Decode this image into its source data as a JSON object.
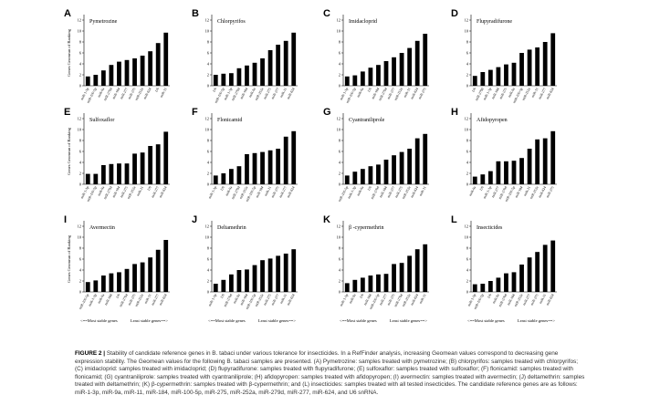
{
  "figure_label": "FIGURE 2 |",
  "caption": "Stability of candidate reference genes in B. tabaci under various tolerance for insecticides. In a RefFinder analysis, increasing Geomean values correspond to decreasing gene expression stability. The Geomean values for the following B. tabaci samples are presented. (A) Pymetrozine: samples treated with pymetrozine; (B) chlorpyrifos: samples treated with chlorpyrifos; (C) imidacloprid: samples treated with imidacloprid; (D) flupyradifurone: samples treated with flupyradifurone; (E) sulfoxaflor: samples treated with sulfoxaflor; (F) flonicamid: samples treated with flonicamid; (G) cyantraniliprole: samples treated with cyantraniliprole; (H) afidopyropen: samples treated with afidopyropen; (I) avermectin: samples treated with avermectin; (J) deltamethrin: samples treated with deltamethrin; (K) β-cypermethrin: samples treated with β-cypermethrin; and (L) insecticides: samples treated with all tested insecticides. The candidate reference genes are as follows: miR-1-3p, miR-9a, miR-11, miR-184, miR-100-5p, miR-275, miR-252a, miR-279d, miR-277, miR-624, and U6 snRNA.",
  "ylabel": "Genes Geomean of Ranking",
  "xlabel_left": "<==Most stable genes",
  "xlabel_right": "Least stable genes==>",
  "chart_data": [
    {
      "type": "bar",
      "panel": "A",
      "title": "Pymetrozine",
      "ylim": [
        0,
        12
      ],
      "yticks": [
        0,
        2,
        4,
        6,
        8,
        10,
        12
      ],
      "categories": [
        "miR-1-3p",
        "miR-100-5p",
        "miR-9a",
        "miR-279d",
        "miR-184",
        "miR-277",
        "miR-275",
        "miR-252a",
        "miR-624",
        "U6",
        "miR-11"
      ],
      "values": [
        1.7,
        2.0,
        2.8,
        3.8,
        4.4,
        4.7,
        5.0,
        5.5,
        6.3,
        7.8,
        9.7
      ]
    },
    {
      "type": "bar",
      "panel": "B",
      "title": "Chlorpyrifos",
      "ylim": [
        0,
        12
      ],
      "yticks": [
        0,
        2,
        4,
        6,
        8,
        10,
        12
      ],
      "categories": [
        "U6",
        "miR-100-5p",
        "miR-1-3p",
        "miR-279d",
        "miR-184",
        "miR-9a",
        "miR-252a",
        "miR-275",
        "miR-277",
        "miR-11",
        "miR-624"
      ],
      "values": [
        2.0,
        2.2,
        2.3,
        3.2,
        3.7,
        4.2,
        5.0,
        6.5,
        7.5,
        8.2,
        9.7
      ]
    },
    {
      "type": "bar",
      "panel": "C",
      "title": "Imidacloprid",
      "ylim": [
        0,
        12
      ],
      "yticks": [
        0,
        2,
        4,
        6,
        8,
        10,
        12
      ],
      "categories": [
        "miR-1-3p",
        "miR-100-5p",
        "miR-9a",
        "U6",
        "miR-184",
        "miR-279d",
        "miR-277",
        "miR-252a",
        "miR-11",
        "miR-624",
        "miR-275"
      ],
      "values": [
        1.7,
        1.9,
        2.6,
        3.3,
        3.8,
        4.5,
        5.2,
        6.0,
        6.9,
        8.2,
        9.5
      ]
    },
    {
      "type": "bar",
      "panel": "D",
      "title": "Flupyradifurone",
      "ylim": [
        0,
        12
      ],
      "yticks": [
        0,
        2,
        4,
        6,
        8,
        10,
        12
      ],
      "categories": [
        "U6",
        "miR-279d",
        "miR-1-3p",
        "miR-184",
        "miR-275",
        "miR-9a",
        "miR-100-5p",
        "miR-252a",
        "miR-11",
        "miR-277",
        "miR-624"
      ],
      "values": [
        1.8,
        2.5,
        2.9,
        3.4,
        3.9,
        4.2,
        6.0,
        6.6,
        7.0,
        8.0,
        9.6
      ]
    },
    {
      "type": "bar",
      "panel": "E",
      "title": "Sulfoxaflor",
      "ylim": [
        0,
        12
      ],
      "yticks": [
        0,
        2,
        4,
        6,
        8,
        10,
        12
      ],
      "categories": [
        "miR-1-3p",
        "miR-100-5p",
        "miR-9a",
        "miR-279d",
        "miR-184",
        "miR-275",
        "miR-252a",
        "miR-11",
        "U6",
        "miR-277",
        "miR-624"
      ],
      "values": [
        1.9,
        1.9,
        3.5,
        3.7,
        3.8,
        3.8,
        5.6,
        5.8,
        7.0,
        7.3,
        9.6
      ]
    },
    {
      "type": "bar",
      "panel": "F",
      "title": "Flonicamid",
      "ylim": [
        0,
        12
      ],
      "yticks": [
        0,
        2,
        4,
        6,
        8,
        10,
        12
      ],
      "categories": [
        "miR-1-3p",
        "U6",
        "miR-9a",
        "miR-279d",
        "miR-252a",
        "miR-100-5p",
        "miR-184",
        "miR-11",
        "miR-275",
        "miR-277",
        "miR-624"
      ],
      "values": [
        1.6,
        2.0,
        2.8,
        3.3,
        5.5,
        5.7,
        5.9,
        6.2,
        6.5,
        8.7,
        9.7
      ]
    },
    {
      "type": "bar",
      "panel": "G",
      "title": "Cyantraniliprole",
      "ylim": [
        0,
        12
      ],
      "yticks": [
        0,
        2,
        4,
        6,
        8,
        10,
        12
      ],
      "categories": [
        "miR-100-5p",
        "miR-1-3p",
        "miR-9a",
        "U6",
        "miR-279d",
        "miR-184",
        "miR-277",
        "miR-275",
        "miR-252a",
        "miR-624",
        "miR-11"
      ],
      "values": [
        1.6,
        2.3,
        2.8,
        3.3,
        3.6,
        4.5,
        5.3,
        5.9,
        6.5,
        8.4,
        9.2
      ]
    },
    {
      "type": "bar",
      "panel": "H",
      "title": "Afidopyropen",
      "ylim": [
        0,
        12
      ],
      "yticks": [
        0,
        2,
        4,
        6,
        8,
        10,
        12
      ],
      "categories": [
        "miR-9a",
        "U6",
        "miR-1-3p",
        "miR-277",
        "miR-279d",
        "miR-100-5p",
        "miR-184",
        "miR-11",
        "miR-252a",
        "miR-624",
        "miR-275"
      ],
      "values": [
        1.4,
        1.8,
        2.4,
        4.2,
        4.2,
        4.3,
        4.8,
        6.5,
        8.2,
        8.4,
        9.7
      ]
    },
    {
      "type": "bar",
      "panel": "I",
      "title": "Avermectin",
      "ylim": [
        0,
        12
      ],
      "yticks": [
        0,
        2,
        4,
        6,
        8,
        10,
        12
      ],
      "categories": [
        "miR-100-5p",
        "miR-1-3p",
        "miR-9a",
        "miR-184",
        "U6",
        "miR-279d",
        "miR-275",
        "miR-252a",
        "miR-11",
        "miR-277",
        "miR-624"
      ],
      "values": [
        1.8,
        2.1,
        3.0,
        3.4,
        3.6,
        4.2,
        5.1,
        5.4,
        6.3,
        7.7,
        9.5
      ]
    },
    {
      "type": "bar",
      "panel": "J",
      "title": "Deltamethrin",
      "ylim": [
        0,
        12
      ],
      "yticks": [
        0,
        2,
        4,
        6,
        8,
        10,
        12
      ],
      "categories": [
        "miR-1-3p",
        "U6",
        "miR-279d",
        "miR-9a",
        "miR-184",
        "miR-100-5p",
        "miR-252a",
        "miR-275",
        "miR-277",
        "miR-11",
        "miR-624"
      ],
      "values": [
        1.5,
        2.2,
        3.2,
        4.0,
        4.1,
        4.9,
        5.8,
        6.1,
        6.6,
        7.0,
        7.8
      ]
    },
    {
      "type": "bar",
      "panel": "K",
      "title": "β -cypermethrin",
      "ylim": [
        0,
        12
      ],
      "yticks": [
        0,
        2,
        4,
        6,
        8,
        10,
        12
      ],
      "categories": [
        "miR-1-3p",
        "miR-9a",
        "U6",
        "miR-184",
        "miR-100-5p",
        "miR-277",
        "miR-275",
        "miR-279d",
        "miR-252a",
        "miR-624",
        "miR-11"
      ],
      "values": [
        1.6,
        2.2,
        2.6,
        3.0,
        3.2,
        3.3,
        5.1,
        5.3,
        6.6,
        7.8,
        8.7
      ]
    },
    {
      "type": "bar",
      "panel": "L",
      "title": "Insecticides",
      "ylim": [
        0,
        12
      ],
      "yticks": [
        0,
        2,
        4,
        6,
        8,
        10,
        12
      ],
      "categories": [
        "miR-1-3p",
        "miR-100-5p",
        "U6",
        "miR-9a",
        "miR-279d",
        "miR-184",
        "miR-252a",
        "miR-277",
        "miR-275",
        "miR-11",
        "miR-624"
      ],
      "values": [
        1.4,
        1.5,
        2.0,
        2.6,
        3.4,
        3.6,
        5.0,
        6.3,
        7.3,
        8.6,
        9.4
      ]
    }
  ]
}
